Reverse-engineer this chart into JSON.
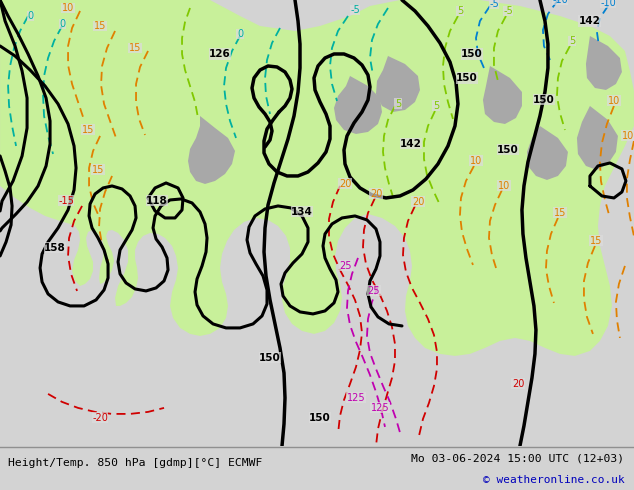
{
  "title_left": "Height/Temp. 850 hPa [gdmp][°C] ECMWF",
  "title_right": "Mo 03-06-2024 15:00 UTC (12+03)",
  "copyright": "© weatheronline.co.uk",
  "bg_color": "#d3d3d3",
  "map_bg_color": "#dcdcdc",
  "land_green_color": "#c8f09a",
  "land_gray_color": "#a8a8a8",
  "bottom_bar_color": "#c8c8c8",
  "figsize": [
    6.34,
    4.9
  ],
  "dpi": 100,
  "teal": "#00b0a0",
  "blue_t": "#0080d0",
  "lime": "#80c800",
  "orange": "#e08000",
  "red": "#d00000",
  "magenta": "#c000b0",
  "black": "#000000"
}
